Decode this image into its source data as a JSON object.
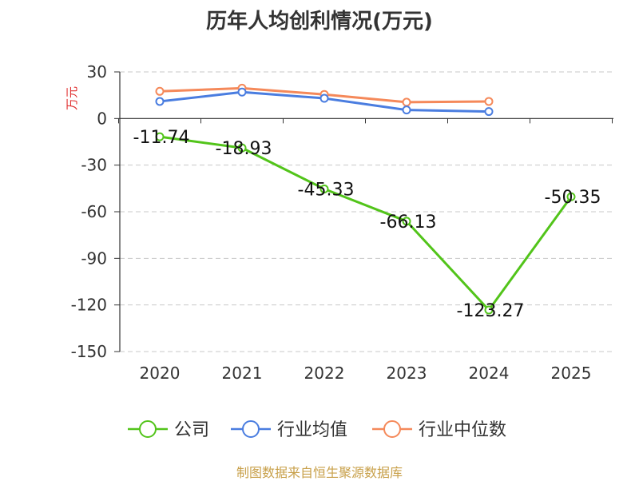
{
  "chart_data": {
    "type": "line",
    "title": "历年人均创利情况(万元)",
    "ylabel": "万元",
    "xlabel": "",
    "categories": [
      "2020",
      "2021",
      "2022",
      "2023",
      "2024",
      "2025"
    ],
    "yticks": [
      "30",
      "0",
      "-30",
      "-60",
      "-90",
      "-120",
      "-150"
    ],
    "ylim": [
      -150,
      30
    ],
    "grid": true,
    "legend_position": "bottom",
    "series": [
      {
        "name": "公司",
        "color": "#52c41a",
        "values": [
          -11.74,
          -18.93,
          -45.33,
          -66.13,
          -123.27,
          -50.35
        ],
        "labels": [
          "-11.74",
          "-18.93",
          "-45.33",
          "-66.13",
          "-123.27",
          "-50.35"
        ]
      },
      {
        "name": "行业均值",
        "color": "#4a7de0",
        "values": [
          11,
          17,
          13,
          5.5,
          4.5,
          null
        ]
      },
      {
        "name": "行业中位数",
        "color": "#f5895a",
        "values": [
          17.5,
          19.5,
          15.5,
          10.5,
          11,
          null
        ]
      }
    ]
  },
  "source": "制图数据来自恒生聚源数据库"
}
